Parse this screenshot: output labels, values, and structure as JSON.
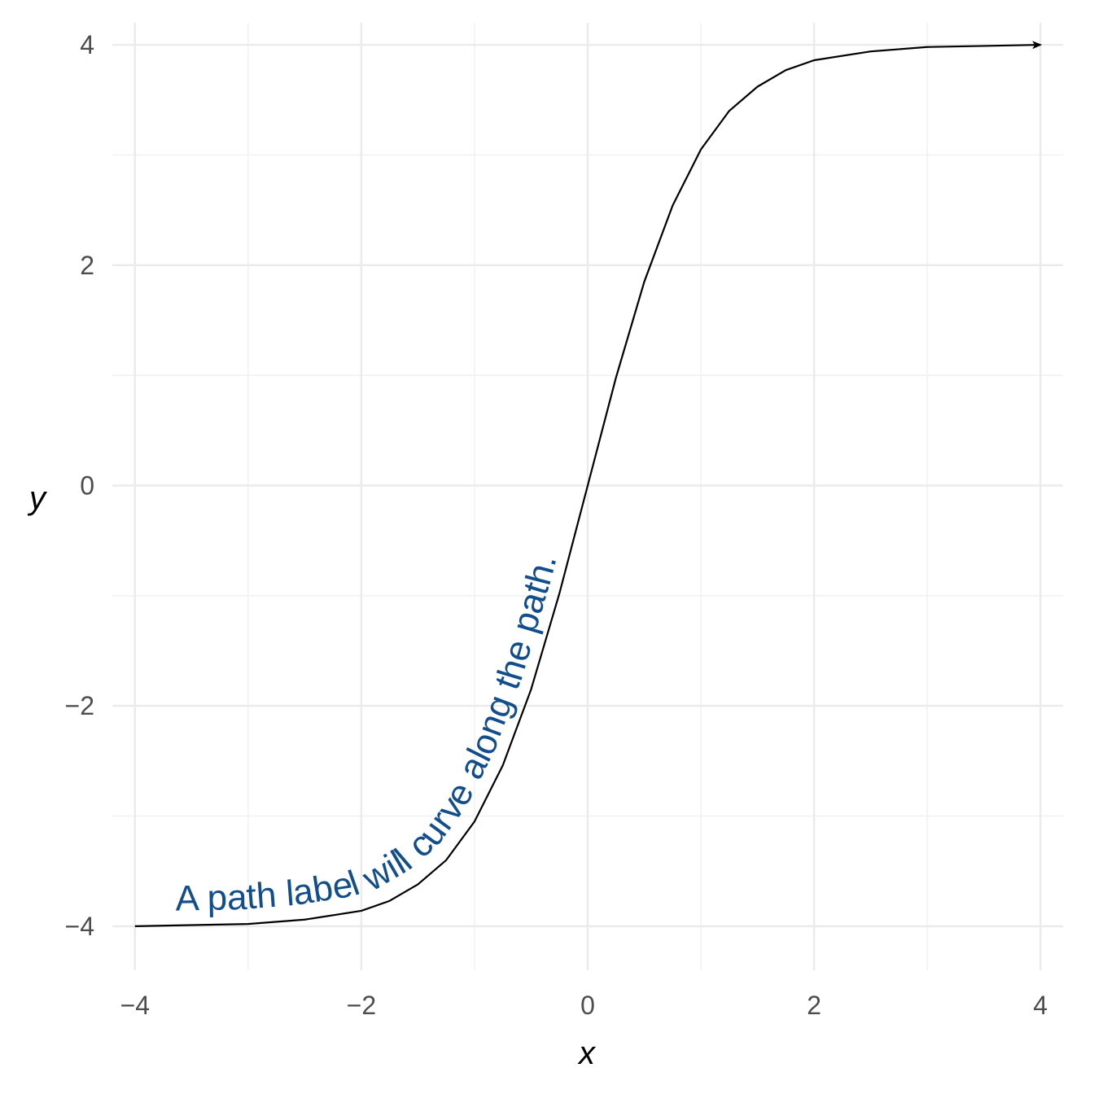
{
  "chart_data": {
    "type": "line",
    "title": "",
    "xlabel": "x",
    "ylabel": "y",
    "xlim": [
      -4.2,
      4.2
    ],
    "ylim": [
      -4.4,
      4.2
    ],
    "x_ticks": [
      -4,
      -2,
      0,
      2,
      4
    ],
    "x_tick_labels": [
      "−4",
      "−2",
      "0",
      "2",
      "4"
    ],
    "y_ticks": [
      -4,
      -2,
      0,
      2,
      4
    ],
    "y_tick_labels": [
      "−4",
      "−2",
      "0",
      "2",
      "4"
    ],
    "grid": true,
    "legend": "none",
    "series": [
      {
        "x": [
          -4,
          -3.5,
          -3,
          -2.5,
          -2,
          -1.75,
          -1.5,
          -1.25,
          -1,
          -0.75,
          -0.5,
          -0.25,
          0,
          0.25,
          0.5,
          0.75,
          1,
          1.25,
          1.5,
          1.75,
          2,
          2.5,
          3,
          3.5,
          4
        ],
        "y": [
          -4.0,
          -3.99,
          -3.98,
          -3.94,
          -3.86,
          -3.77,
          -3.62,
          -3.4,
          -3.05,
          -2.54,
          -1.85,
          -0.98,
          0.0,
          0.98,
          1.85,
          2.54,
          3.05,
          3.4,
          3.62,
          3.77,
          3.86,
          3.94,
          3.98,
          3.99,
          4.0
        ],
        "color": "#000000",
        "arrow_end": true
      }
    ],
    "annotations": [
      {
        "text": "A path label will curve along the path.",
        "color": "#124e8c",
        "follows_series": 0
      }
    ]
  }
}
